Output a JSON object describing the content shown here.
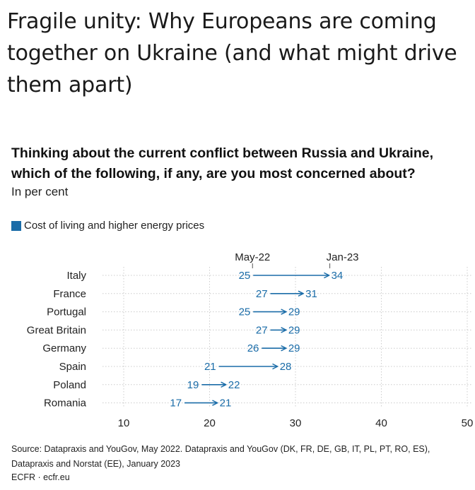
{
  "title": "Fragile unity: Why Europeans are coming together on Ukraine (and what might drive them apart)",
  "subtitle": "Thinking about the current conflict between Russia and Ukraine, which of the following, if any, are you most concerned about?",
  "unit": "In per cent",
  "legend_label": "Cost of living and higher energy prices",
  "source": "Source: Datapraxis and YouGov, May 2022. Datapraxis and YouGov (DK, FR, DE, GB, IT, PL, PT, RO, ES), Datapraxis and Norstat (EE), January 2023",
  "credit": "ECFR · ecfr.eu",
  "colors": {
    "series": "#1a6ca8",
    "grid": "#cccccc",
    "text": "#1a1a1a"
  },
  "chart_data": {
    "type": "arrow-dot",
    "title": "Thinking about the current conflict between Russia and Ukraine, which of the following, if any, are you most concerned about?",
    "ylabel": "",
    "xlabel": "",
    "xlim": [
      8,
      50
    ],
    "xticks": [
      10,
      20,
      30,
      40,
      50
    ],
    "grid": true,
    "legend_position": "top-left",
    "start_label": "May-22",
    "end_label": "Jan-23",
    "categories": [
      "Italy",
      "France",
      "Portugal",
      "Great Britain",
      "Germany",
      "Spain",
      "Poland",
      "Romania"
    ],
    "series": [
      {
        "name": "May-22",
        "values": [
          25,
          27,
          25,
          27,
          26,
          21,
          19,
          17
        ]
      },
      {
        "name": "Jan-23",
        "values": [
          34,
          31,
          29,
          29,
          29,
          28,
          22,
          21
        ]
      }
    ]
  }
}
